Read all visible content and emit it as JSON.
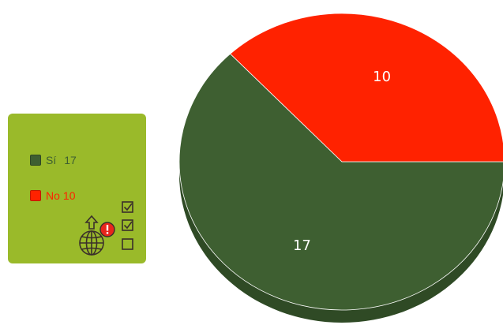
{
  "colors": {
    "legend_bg": "#9aba2a",
    "si": "#3e5f31",
    "si_side": "#2f4a25",
    "no": "#ff2200",
    "no_text": "#ff2200",
    "si_text": "#3e5f31",
    "icon": "#3a2f2a",
    "alert": "#e8261c"
  },
  "icons": [
    "globe-upload-icon",
    "alert-icon",
    "checkbox-checked-icon",
    "checkbox-checked-icon",
    "checkbox-empty-icon"
  ],
  "chart_data": {
    "type": "pie",
    "style": "3d",
    "categories": [
      "Sí",
      "No"
    ],
    "values": [
      17,
      10
    ],
    "data_labels": [
      "17",
      "10"
    ],
    "legend": {
      "placement": "left",
      "entries": [
        {
          "label": "Sí",
          "value": "17"
        },
        {
          "label": "No",
          "value": "10"
        }
      ]
    },
    "title": "",
    "xlabel": "",
    "ylabel": ""
  }
}
